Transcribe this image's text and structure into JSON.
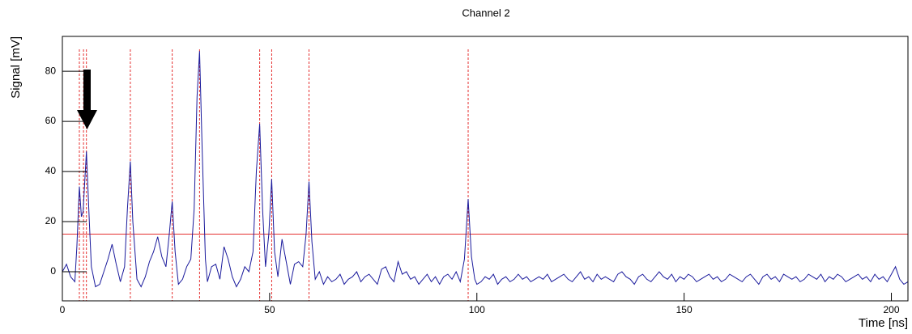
{
  "chart_data": {
    "type": "line",
    "title": "Channel 2",
    "x_label": "Time [ns]",
    "y_label": "Signal [mV]",
    "xlim": [
      0,
      204
    ],
    "ylim": [
      -11.6,
      93.9
    ],
    "xticks": [
      0,
      50,
      100,
      150,
      200
    ],
    "yticks": [
      0,
      20,
      40,
      60,
      80
    ],
    "threshold": 15,
    "threshold_color": "#e53030",
    "marker_color": "#e53030",
    "markers": [
      4.1,
      5.1,
      5.8,
      16.4,
      26.5,
      33.1,
      47.6,
      50.5,
      59.5,
      97.9
    ],
    "x": [
      0,
      1,
      2,
      3,
      3.5,
      4.1,
      4.6,
      5,
      5.8,
      6.5,
      7,
      8,
      9,
      10,
      11,
      12,
      13,
      14,
      15,
      15.7,
      16.4,
      17,
      18,
      19,
      20,
      21,
      22,
      23,
      24,
      25,
      25.8,
      26.5,
      27.2,
      28,
      29,
      30,
      31,
      31.8,
      32.5,
      33.1,
      33.7,
      34.5,
      35,
      36,
      37,
      38,
      39,
      40,
      41,
      42,
      43,
      44,
      45,
      46,
      46.8,
      47.6,
      48.3,
      49,
      49.8,
      50.5,
      51.2,
      52,
      53,
      54,
      55,
      56,
      57,
      58,
      58.8,
      59.5,
      60.2,
      61,
      62,
      63,
      64,
      65,
      66,
      67,
      68,
      69,
      70,
      71,
      72,
      73,
      74,
      75,
      76,
      77,
      78,
      79,
      80,
      81,
      82,
      83,
      84,
      85,
      86,
      87,
      88,
      89,
      90,
      91,
      92,
      93,
      94,
      95,
      96,
      97,
      97.9,
      98.7,
      99.5,
      100,
      101,
      102,
      103,
      104,
      105,
      106,
      107,
      108,
      109,
      110,
      111,
      112,
      113,
      114,
      115,
      116,
      117,
      118,
      119,
      120,
      121,
      122,
      123,
      124,
      125,
      126,
      127,
      128,
      129,
      130,
      131,
      132,
      133,
      134,
      135,
      136,
      137,
      138,
      139,
      140,
      141,
      142,
      143,
      144,
      145,
      146,
      147,
      148,
      149,
      150,
      151,
      152,
      153,
      154,
      155,
      156,
      157,
      158,
      159,
      160,
      161,
      162,
      163,
      164,
      165,
      166,
      167,
      168,
      169,
      170,
      171,
      172,
      173,
      174,
      175,
      176,
      177,
      178,
      179,
      180,
      181,
      182,
      183,
      184,
      185,
      186,
      187,
      188,
      189,
      190,
      191,
      192,
      193,
      194,
      195,
      196,
      197,
      198,
      199,
      200,
      201,
      202,
      203,
      204
    ],
    "series": [
      {
        "name": "Channel 2",
        "color": "#1a1a9c",
        "values": [
          0,
          3,
          -2,
          -4,
          10,
          34,
          22,
          24,
          48,
          20,
          2,
          -6,
          -5,
          0,
          5,
          11,
          3,
          -4,
          2,
          25,
          44,
          20,
          -3,
          -6,
          -2,
          4,
          8,
          14,
          6,
          2,
          15,
          28,
          8,
          -5,
          -3,
          2,
          5,
          25,
          70,
          88,
          50,
          5,
          -4,
          2,
          3,
          -3,
          10,
          5,
          -2,
          -6,
          -3,
          2,
          0,
          8,
          40,
          59,
          25,
          2,
          15,
          37,
          8,
          -2,
          13,
          4,
          -5,
          3,
          4,
          2,
          15,
          36,
          12,
          -3,
          0,
          -5,
          -2,
          -4,
          -3,
          -1,
          -5,
          -3,
          -2,
          0,
          -4,
          -2,
          -1,
          -3,
          -5,
          1,
          2,
          -2,
          -4,
          4,
          -1,
          0,
          -3,
          -2,
          -5,
          -3,
          -1,
          -4,
          -2,
          -5,
          -2,
          -1,
          -3,
          0,
          -4,
          5,
          29,
          6,
          -3,
          -5,
          -4,
          -2,
          -3,
          -1,
          -5,
          -3,
          -2,
          -4,
          -3,
          -1,
          -3,
          -2,
          -4,
          -3,
          -2,
          -3,
          -1,
          -4,
          -3,
          -2,
          -1,
          -3,
          -4,
          -2,
          0,
          -3,
          -2,
          -4,
          -1,
          -3,
          -2,
          -3,
          -4,
          -1,
          0,
          -2,
          -3,
          -5,
          -2,
          -1,
          -3,
          -4,
          -2,
          0,
          -2,
          -3,
          -1,
          -4,
          -2,
          -3,
          -1,
          -2,
          -4,
          -3,
          -2,
          -1,
          -3,
          -2,
          -4,
          -3,
          -1,
          -2,
          -3,
          -4,
          -2,
          -1,
          -3,
          -5,
          -2,
          -1,
          -3,
          -2,
          -4,
          -1,
          -2,
          -3,
          -2,
          -4,
          -3,
          -1,
          -2,
          -3,
          -1,
          -4,
          -2,
          -3,
          -1,
          -2,
          -4,
          -3,
          -2,
          -1,
          -3,
          -2,
          -4,
          -1,
          -3,
          -2,
          -4,
          -1,
          2,
          -3,
          -5,
          -4
        ]
      }
    ]
  }
}
